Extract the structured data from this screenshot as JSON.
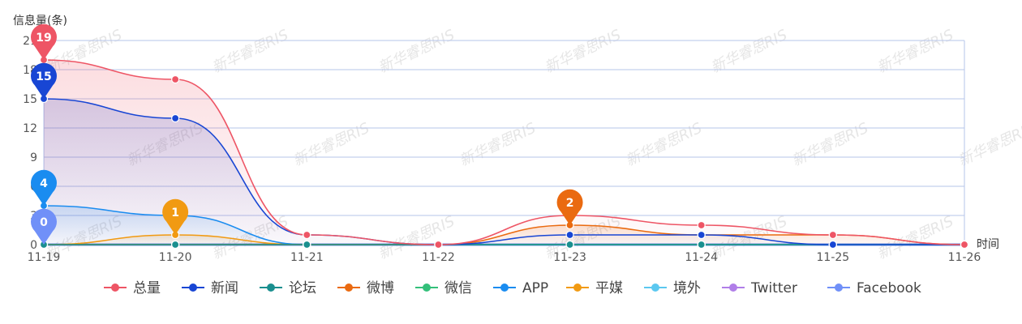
{
  "chart_data": {
    "type": "line",
    "title": "",
    "ylabel": "信息量(条)",
    "xlabel": "时间",
    "categories": [
      "11-19",
      "11-20",
      "11-21",
      "11-22",
      "11-23",
      "11-24",
      "11-25",
      "11-26"
    ],
    "yticks": [
      0,
      3,
      6,
      9,
      12,
      15,
      18,
      21
    ],
    "ylim": [
      0,
      21
    ],
    "grid": true,
    "smooth": true,
    "legend_position": "bottom",
    "series": [
      {
        "name": "总量",
        "color": "#ee5565",
        "values": [
          19,
          17,
          1,
          0,
          3,
          2,
          1,
          0
        ]
      },
      {
        "name": "新闻",
        "color": "#1846d4",
        "values": [
          15,
          13,
          1,
          0,
          1,
          1,
          0,
          0
        ]
      },
      {
        "name": "论坛",
        "color": "#1a8f8f",
        "values": [
          0,
          0,
          0,
          0,
          0,
          0,
          0,
          0
        ]
      },
      {
        "name": "微博",
        "color": "#ea6a10",
        "values": [
          0,
          0,
          0,
          0,
          2,
          1,
          1,
          0
        ]
      },
      {
        "name": "微信",
        "color": "#33c07a",
        "values": [
          0,
          0,
          0,
          0,
          0,
          0,
          0,
          0
        ]
      },
      {
        "name": "APP",
        "color": "#1a8cf0",
        "values": [
          4,
          3,
          0,
          0,
          0,
          0,
          0,
          0
        ]
      },
      {
        "name": "平媒",
        "color": "#f19a12",
        "values": [
          0,
          1,
          0,
          0,
          0,
          0,
          0,
          0
        ]
      },
      {
        "name": "境外",
        "color": "#5bc8f0",
        "values": [
          0,
          0,
          0,
          0,
          0,
          0,
          0,
          0
        ]
      },
      {
        "name": "Twitter",
        "color": "#b07ee8",
        "values": [
          0,
          0,
          0,
          0,
          0,
          0,
          0,
          0
        ]
      },
      {
        "name": "Facebook",
        "color": "#7090f8",
        "values": [
          0,
          0,
          0,
          0,
          0,
          0,
          0,
          0
        ]
      }
    ],
    "max_markers": [
      {
        "series": "总量",
        "x": "11-19",
        "value": 19
      },
      {
        "series": "新闻",
        "x": "11-19",
        "value": 15
      },
      {
        "series": "APP",
        "x": "11-19",
        "value": 4
      },
      {
        "series": "Facebook",
        "x": "11-19",
        "value": 0
      },
      {
        "series": "平媒",
        "x": "11-20",
        "value": 1
      },
      {
        "series": "微博",
        "x": "11-23",
        "value": 2
      }
    ],
    "watermark": "新华睿思RIS"
  }
}
